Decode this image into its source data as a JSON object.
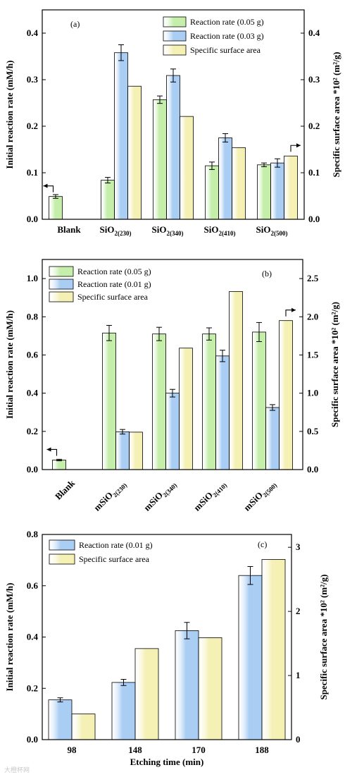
{
  "chart_data": [
    {
      "type": "bar",
      "panel_label": "(a)",
      "categories": [
        {
          "main": "Blank",
          "sub": ""
        },
        {
          "main": "SiO",
          "sub": "2(230)"
        },
        {
          "main": "SiO",
          "sub": "2(340)"
        },
        {
          "main": "SiO",
          "sub": "2(410)"
        },
        {
          "main": "SiO",
          "sub": "2(500)"
        }
      ],
      "series": [
        {
          "name": "Reaction rate (0.05 g)",
          "axis": "left",
          "color": "#c4eeaa",
          "values": [
            0.049,
            0.084,
            0.257,
            0.115,
            0.117
          ],
          "errors": [
            0.004,
            0.006,
            0.008,
            0.008,
            0.004
          ]
        },
        {
          "name": "Reaction rate (0.03 g)",
          "axis": "left",
          "color": "#a9cdf3",
          "values": [
            null,
            0.358,
            0.309,
            0.175,
            0.121
          ],
          "errors": [
            null,
            0.017,
            0.014,
            0.009,
            0.009
          ]
        },
        {
          "name": "Specific surface area",
          "axis": "right",
          "color": "#f5f0b4",
          "values": [
            null,
            0.286,
            0.221,
            0.154,
            0.136
          ],
          "errors": [
            null,
            null,
            null,
            null,
            null
          ]
        }
      ],
      "ylabel_left": "Initial reaction rate (mM/h)",
      "ylabel_right": "Specific surface area *10² (m²/g)",
      "ylim_left": [
        0,
        0.45
      ],
      "yticks_left": [
        "0.0",
        "0.1",
        "0.2",
        "0.3",
        "0.4"
      ],
      "ylim_right": [
        0,
        0.45
      ],
      "yticks_right": [
        "0.0",
        "0.1",
        "0.2",
        "0.3",
        "0.4"
      ],
      "rotated_labels": false,
      "legend_position": "top-right",
      "arrows": [
        "left-pointing arrow at Blank",
        "right-pointing arrow at SiO2(500)"
      ]
    },
    {
      "type": "bar",
      "panel_label": "(b)",
      "categories": [
        {
          "main": "Blank",
          "sub": ""
        },
        {
          "main": "mSiO",
          "sub": "2(230)"
        },
        {
          "main": "mSiO",
          "sub": "2(340)"
        },
        {
          "main": "mSiO",
          "sub": "2(410)"
        },
        {
          "main": "mSiO",
          "sub": "2(500)"
        }
      ],
      "series": [
        {
          "name": "Reaction rate (0.05 g)",
          "axis": "left",
          "color": "#c4eeaa",
          "values": [
            0.05,
            0.715,
            0.71,
            0.71,
            0.72
          ],
          "errors": [
            0.004,
            0.04,
            0.035,
            0.032,
            0.05
          ]
        },
        {
          "name": "Reaction rate (0.01 g)",
          "axis": "left",
          "color": "#a9cdf3",
          "values": [
            null,
            0.198,
            0.4,
            0.595,
            0.325
          ],
          "errors": [
            null,
            0.012,
            0.02,
            0.03,
            0.015
          ]
        },
        {
          "name": "Specific surface area",
          "axis": "right",
          "color": "#f5f0b4",
          "values": [
            null,
            0.49,
            1.59,
            2.33,
            1.95
          ],
          "errors": [
            null,
            null,
            null,
            null,
            null
          ]
        }
      ],
      "ylabel_left": "Initial reaction rate (mM/h)",
      "ylabel_right": "Specific surface area *10² (m²/g)",
      "ylim_left": [
        0,
        1.1
      ],
      "yticks_left": [
        "0.0",
        "0.2",
        "0.4",
        "0.6",
        "0.8",
        "1.0"
      ],
      "ylim_right": [
        0,
        2.75
      ],
      "yticks_right": [
        "0.0",
        "0.5",
        "1.0",
        "1.5",
        "2.0",
        "2.5"
      ],
      "rotated_labels": true,
      "legend_position": "top-left",
      "arrows": [
        "left-pointing arrow at Blank",
        "right-pointing arrow at mSiO2(500)"
      ]
    },
    {
      "type": "bar",
      "panel_label": "(c)",
      "categories": [
        {
          "main": "98",
          "sub": ""
        },
        {
          "main": "148",
          "sub": ""
        },
        {
          "main": "170",
          "sub": ""
        },
        {
          "main": "188",
          "sub": ""
        }
      ],
      "series": [
        {
          "name": "Reaction rate (0.01 g)",
          "axis": "left",
          "color": "#a9cdf3",
          "values": [
            0.155,
            0.223,
            0.425,
            0.64
          ],
          "errors": [
            0.008,
            0.012,
            0.032,
            0.035
          ]
        },
        {
          "name": "Specific surface area",
          "axis": "right",
          "color": "#f5f0b4",
          "values": [
            0.4,
            1.42,
            1.59,
            2.81
          ],
          "errors": [
            null,
            null,
            null,
            null
          ]
        }
      ],
      "xlabel": "Etching time (min)",
      "ylabel_left": "Initial reaction rate (mM/h)",
      "ylabel_right": "Specific surface area *10² (m²/g)",
      "ylim_left": [
        0,
        0.8
      ],
      "yticks_left": [
        "0.0",
        "0.2",
        "0.4",
        "0.6",
        "0.8"
      ],
      "ylim_right": [
        0,
        3.2
      ],
      "yticks_right": [
        "0",
        "1",
        "2",
        "3"
      ],
      "rotated_labels": false,
      "legend_position": "top-left",
      "arrows": []
    }
  ],
  "watermark": "大橙杯网"
}
